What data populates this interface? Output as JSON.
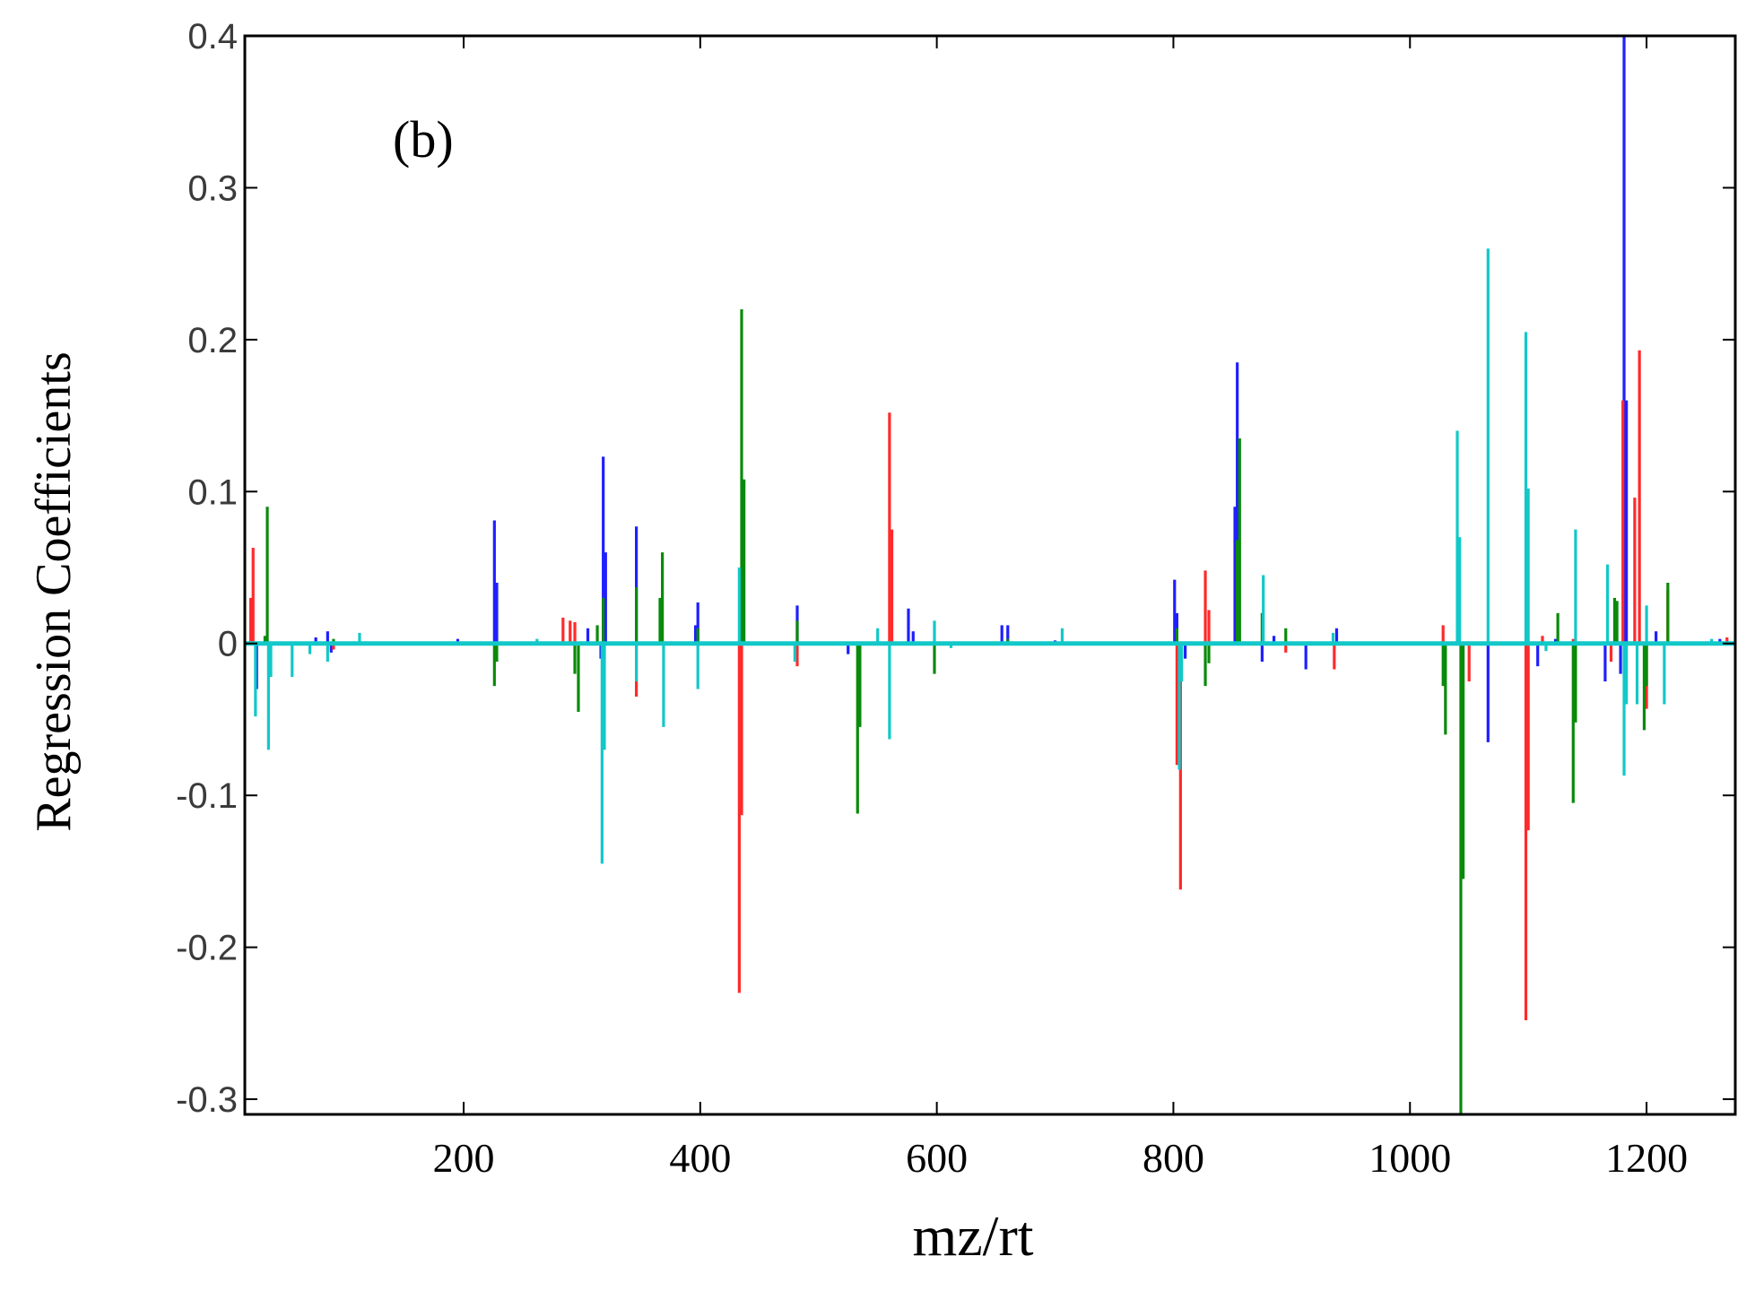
{
  "chart_data": {
    "type": "bar",
    "title": "",
    "panel_label": "(b)",
    "xlabel": "mz/rt",
    "ylabel": "Regression Coefficients",
    "xlim": [
      15,
      1275
    ],
    "ylim": [
      -0.31,
      0.4
    ],
    "x_ticks": [
      200,
      400,
      600,
      800,
      1000,
      1200
    ],
    "x_tick_labels": [
      "200",
      "400",
      "600",
      "800",
      "1000",
      "1200"
    ],
    "y_ticks": [
      0.4,
      0.3,
      0.2,
      0.1,
      0,
      -0.1,
      -0.2,
      -0.3
    ],
    "y_tick_labels": [
      "0.4",
      "0.3",
      "0.2",
      "0.1",
      "0",
      "-0.1",
      "-0.2",
      "-0.3"
    ],
    "grid": false,
    "colors": {
      "blue": "#1f1fff",
      "red": "#ff2a2a",
      "green": "#0a8a0a",
      "cyan": "#12c8c8",
      "axis": "#000000",
      "baseline": "#12c8c8"
    },
    "series": [
      {
        "name": "blue",
        "color": "#1f1fff",
        "points": [
          [
            25,
            -0.03
          ],
          [
            75,
            0.004
          ],
          [
            85,
            0.008
          ],
          [
            88,
            -0.006
          ],
          [
            195,
            0.003
          ],
          [
            226,
            0.081
          ],
          [
            228,
            0.04
          ],
          [
            305,
            0.01
          ],
          [
            316,
            -0.01
          ],
          [
            318,
            0.123
          ],
          [
            320,
            0.06
          ],
          [
            346,
            0.077
          ],
          [
            396,
            0.012
          ],
          [
            398,
            0.027
          ],
          [
            482,
            0.025
          ],
          [
            525,
            -0.007
          ],
          [
            576,
            0.023
          ],
          [
            580,
            0.008
          ],
          [
            655,
            0.012
          ],
          [
            660,
            0.012
          ],
          [
            700,
            0.002
          ],
          [
            801,
            0.042
          ],
          [
            803,
            0.02
          ],
          [
            810,
            -0.01
          ],
          [
            852,
            0.09
          ],
          [
            854,
            0.185
          ],
          [
            875,
            -0.012
          ],
          [
            885,
            0.005
          ],
          [
            912,
            -0.017
          ],
          [
            938,
            0.01
          ],
          [
            1066,
            -0.065
          ],
          [
            1108,
            -0.015
          ],
          [
            1123,
            0.003
          ],
          [
            1165,
            -0.025
          ],
          [
            1178,
            -0.02
          ],
          [
            1181,
            0.4
          ],
          [
            1183,
            0.16
          ],
          [
            1208,
            0.008
          ],
          [
            1262,
            0.003
          ]
        ]
      },
      {
        "name": "red",
        "color": "#ff2a2a",
        "points": [
          [
            20,
            0.03
          ],
          [
            22,
            0.063
          ],
          [
            90,
            -0.004
          ],
          [
            284,
            0.017
          ],
          [
            290,
            0.015
          ],
          [
            294,
            0.014
          ],
          [
            346,
            -0.035
          ],
          [
            433,
            -0.23
          ],
          [
            435,
            -0.113
          ],
          [
            482,
            -0.015
          ],
          [
            560,
            0.152
          ],
          [
            562,
            0.075
          ],
          [
            803,
            -0.08
          ],
          [
            806,
            -0.162
          ],
          [
            827,
            0.048
          ],
          [
            830,
            0.022
          ],
          [
            895,
            -0.006
          ],
          [
            936,
            -0.017
          ],
          [
            1028,
            0.012
          ],
          [
            1050,
            -0.025
          ],
          [
            1098,
            -0.248
          ],
          [
            1100,
            -0.123
          ],
          [
            1112,
            0.005
          ],
          [
            1138,
            0.003
          ],
          [
            1170,
            -0.012
          ],
          [
            1180,
            0.16
          ],
          [
            1190,
            0.096
          ],
          [
            1194,
            0.193
          ],
          [
            1200,
            -0.043
          ],
          [
            1218,
            0.035
          ],
          [
            1268,
            0.004
          ]
        ]
      },
      {
        "name": "green",
        "color": "#0a8a0a",
        "points": [
          [
            32,
            0.005
          ],
          [
            34,
            0.09
          ],
          [
            90,
            0.003
          ],
          [
            226,
            -0.028
          ],
          [
            228,
            -0.012
          ],
          [
            294,
            -0.02
          ],
          [
            297,
            -0.045
          ],
          [
            313,
            0.012
          ],
          [
            318,
            0.03
          ],
          [
            346,
            0.037
          ],
          [
            366,
            0.03
          ],
          [
            368,
            0.06
          ],
          [
            398,
            0.01
          ],
          [
            435,
            0.22
          ],
          [
            437,
            0.108
          ],
          [
            482,
            0.015
          ],
          [
            533,
            -0.112
          ],
          [
            535,
            -0.055
          ],
          [
            598,
            -0.02
          ],
          [
            660,
            0.003
          ],
          [
            803,
            0.01
          ],
          [
            827,
            -0.028
          ],
          [
            830,
            -0.013
          ],
          [
            854,
            0.068
          ],
          [
            856,
            0.135
          ],
          [
            875,
            0.02
          ],
          [
            895,
            0.01
          ],
          [
            1028,
            -0.028
          ],
          [
            1030,
            -0.06
          ],
          [
            1043,
            -0.31
          ],
          [
            1045,
            -0.155
          ],
          [
            1125,
            0.02
          ],
          [
            1138,
            -0.105
          ],
          [
            1140,
            -0.052
          ],
          [
            1173,
            0.03
          ],
          [
            1175,
            0.028
          ],
          [
            1198,
            -0.057
          ],
          [
            1200,
            -0.028
          ],
          [
            1218,
            0.04
          ]
        ]
      },
      {
        "name": "cyan",
        "color": "#12c8c8",
        "points": [
          [
            24,
            -0.048
          ],
          [
            35,
            -0.07
          ],
          [
            37,
            -0.022
          ],
          [
            55,
            -0.022
          ],
          [
            70,
            -0.007
          ],
          [
            85,
            -0.012
          ],
          [
            112,
            0.007
          ],
          [
            262,
            0.003
          ],
          [
            317,
            -0.145
          ],
          [
            319,
            -0.07
          ],
          [
            346,
            -0.025
          ],
          [
            369,
            -0.055
          ],
          [
            398,
            -0.03
          ],
          [
            433,
            0.05
          ],
          [
            480,
            -0.012
          ],
          [
            550,
            0.01
          ],
          [
            560,
            -0.063
          ],
          [
            598,
            0.015
          ],
          [
            612,
            -0.003
          ],
          [
            706,
            0.01
          ],
          [
            805,
            -0.083
          ],
          [
            807,
            -0.025
          ],
          [
            876,
            0.045
          ],
          [
            935,
            0.007
          ],
          [
            1040,
            0.14
          ],
          [
            1042,
            0.07
          ],
          [
            1066,
            0.26
          ],
          [
            1098,
            0.205
          ],
          [
            1100,
            0.102
          ],
          [
            1115,
            -0.005
          ],
          [
            1140,
            0.075
          ],
          [
            1167,
            0.052
          ],
          [
            1181,
            -0.087
          ],
          [
            1183,
            -0.04
          ],
          [
            1192,
            -0.04
          ],
          [
            1200,
            0.025
          ],
          [
            1215,
            -0.04
          ],
          [
            1255,
            0.003
          ]
        ]
      }
    ]
  }
}
